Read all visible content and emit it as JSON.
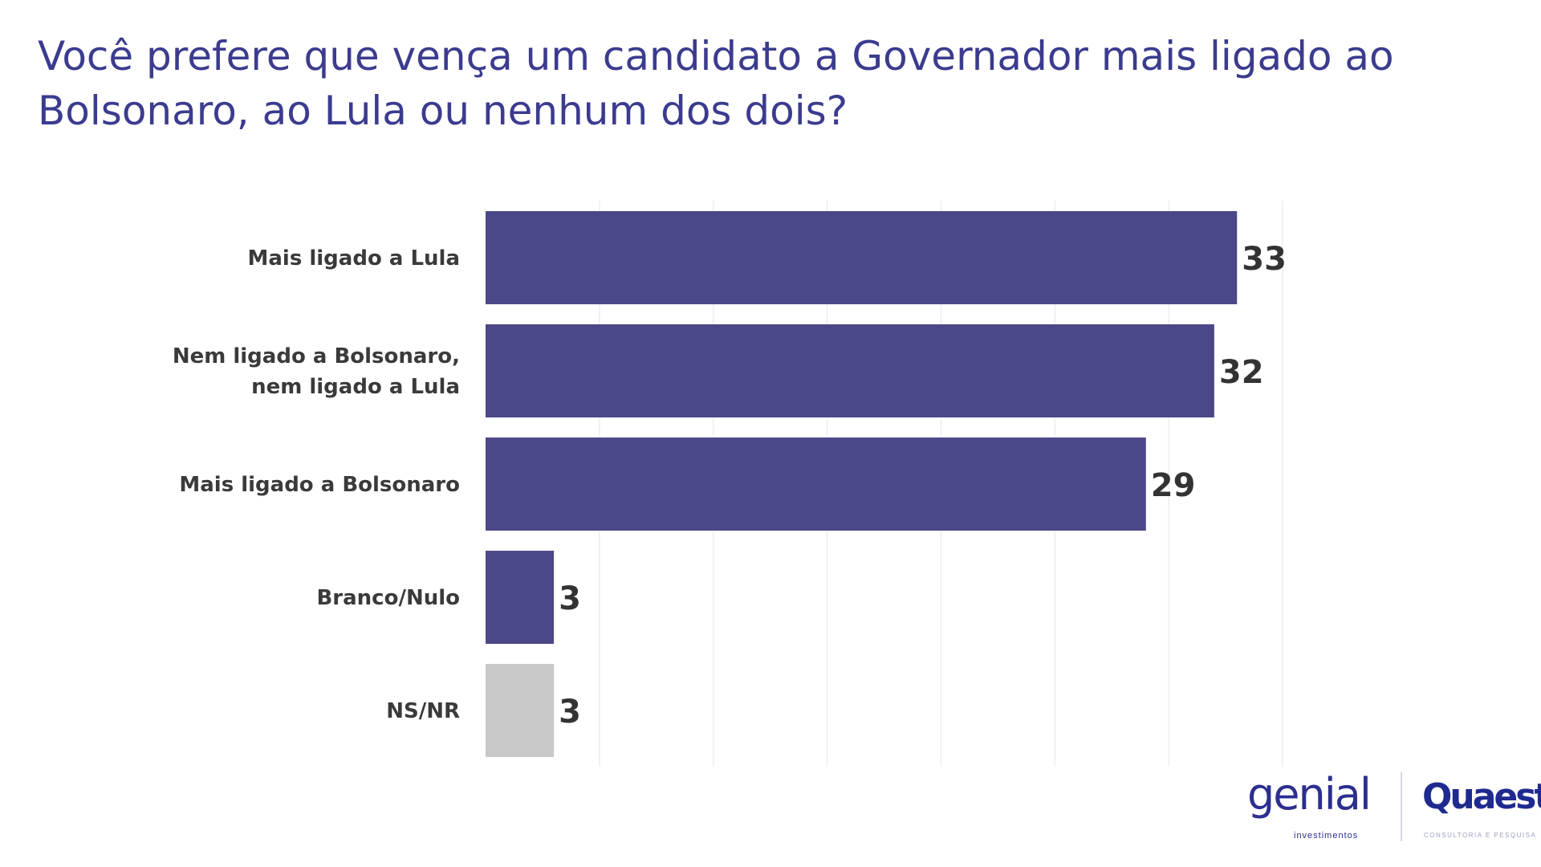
{
  "chart_data": {
    "type": "bar",
    "orientation": "horizontal",
    "title": "Você prefere que vença um candidato a Governador mais ligado ao Bolsonaro, ao Lula ou nenhum dos dois?",
    "categories": [
      [
        "Mais ligado a Lula"
      ],
      [
        "Nem ligado a Bolsonaro,",
        "nem ligado a Lula"
      ],
      [
        "Mais ligado a Bolsonaro"
      ],
      [
        "Branco/Nulo"
      ],
      [
        "NS/NR"
      ]
    ],
    "values": [
      33,
      32,
      29,
      3,
      3
    ],
    "colors": [
      "#4b4889",
      "#4b4889",
      "#4b4889",
      "#4b4889",
      "#c8c8c8"
    ],
    "xlim": [
      0,
      35
    ],
    "grid": true,
    "gridline_step": 5,
    "xlabel": "",
    "ylabel": ""
  },
  "logos": {
    "genial": "genial",
    "genial_sub": "investimentos",
    "quaest": "Quaest",
    "quaest_sub": "CONSULTORIA E PESQUISA"
  }
}
